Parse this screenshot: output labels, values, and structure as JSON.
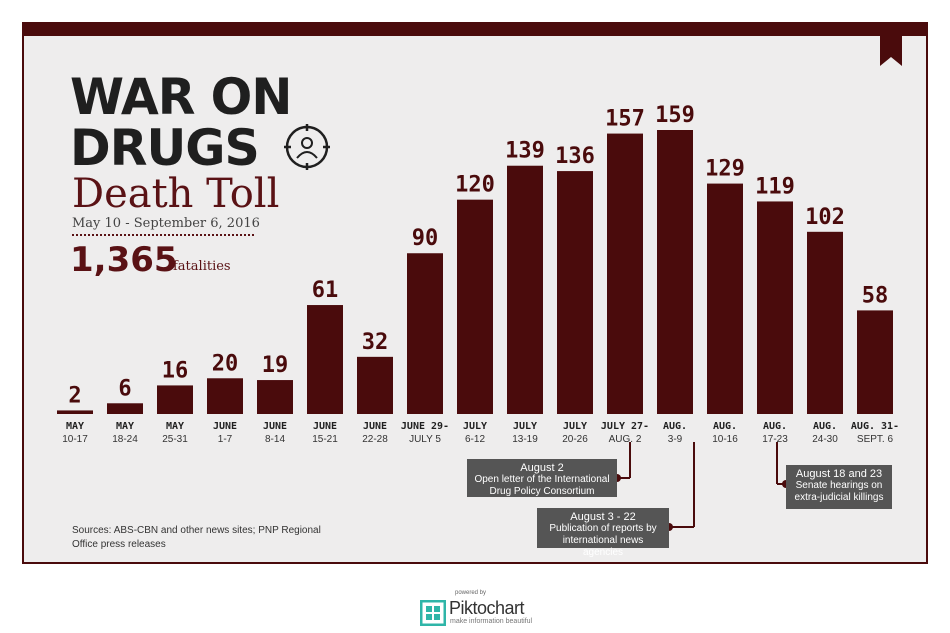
{
  "header": {
    "title_line1": "WAR ON",
    "title_line2": "DRUGS",
    "subtitle": "Death Toll",
    "date_range": "May 10 - September 6, 2016",
    "total": "1,365",
    "total_unit": "fatalities",
    "icon": "target-person-icon"
  },
  "colors": {
    "bar": "#4a0b0c",
    "frame": "#4a0b0c",
    "panel": "#eeeded",
    "note": "#555555"
  },
  "chart_data": {
    "type": "bar",
    "title": "",
    "xlabel": "",
    "ylabel": "",
    "ylim": [
      0,
      159
    ],
    "grid": false,
    "categories": [
      {
        "l1": "MAY",
        "l2": "10-17"
      },
      {
        "l1": "MAY",
        "l2": "18-24"
      },
      {
        "l1": "MAY",
        "l2": "25-31"
      },
      {
        "l1": "JUNE",
        "l2": "1-7"
      },
      {
        "l1": "JUNE",
        "l2": "8-14"
      },
      {
        "l1": "JUNE",
        "l2": "15-21"
      },
      {
        "l1": "JUNE",
        "l2": "22-28"
      },
      {
        "l1": "JUNE 29-",
        "l2": "JULY 5"
      },
      {
        "l1": "JULY",
        "l2": "6-12"
      },
      {
        "l1": "JULY",
        "l2": "13-19"
      },
      {
        "l1": "JULY",
        "l2": "20-26"
      },
      {
        "l1": "JULY 27-",
        "l2": "AUG. 2"
      },
      {
        "l1": "AUG.",
        "l2": "3-9"
      },
      {
        "l1": "AUG.",
        "l2": "10-16"
      },
      {
        "l1": "AUG.",
        "l2": "17-23"
      },
      {
        "l1": "AUG.",
        "l2": "24-30"
      },
      {
        "l1": "AUG. 31-",
        "l2": "SEPT. 6"
      }
    ],
    "values": [
      2,
      6,
      16,
      20,
      19,
      61,
      32,
      90,
      120,
      139,
      136,
      157,
      159,
      129,
      119,
      102,
      58
    ],
    "annotations": [
      {
        "title": "August 2",
        "text": "Open letter of the International Drug Policy Consortium",
        "category_index": 11
      },
      {
        "title": "August 3 - 22",
        "text": "Publication of reports by international news agencies",
        "category_index": 12
      },
      {
        "title": "August 18 and 23",
        "text": "Senate hearings on extra-judicial killings",
        "category_index": 14
      }
    ]
  },
  "footer": {
    "sources": "Sources: ABS-CBN and other news sites; PNP Regional Office press releases",
    "powered_by": "powered by",
    "brand": "Piktochart",
    "tagline": "make information beautiful"
  }
}
